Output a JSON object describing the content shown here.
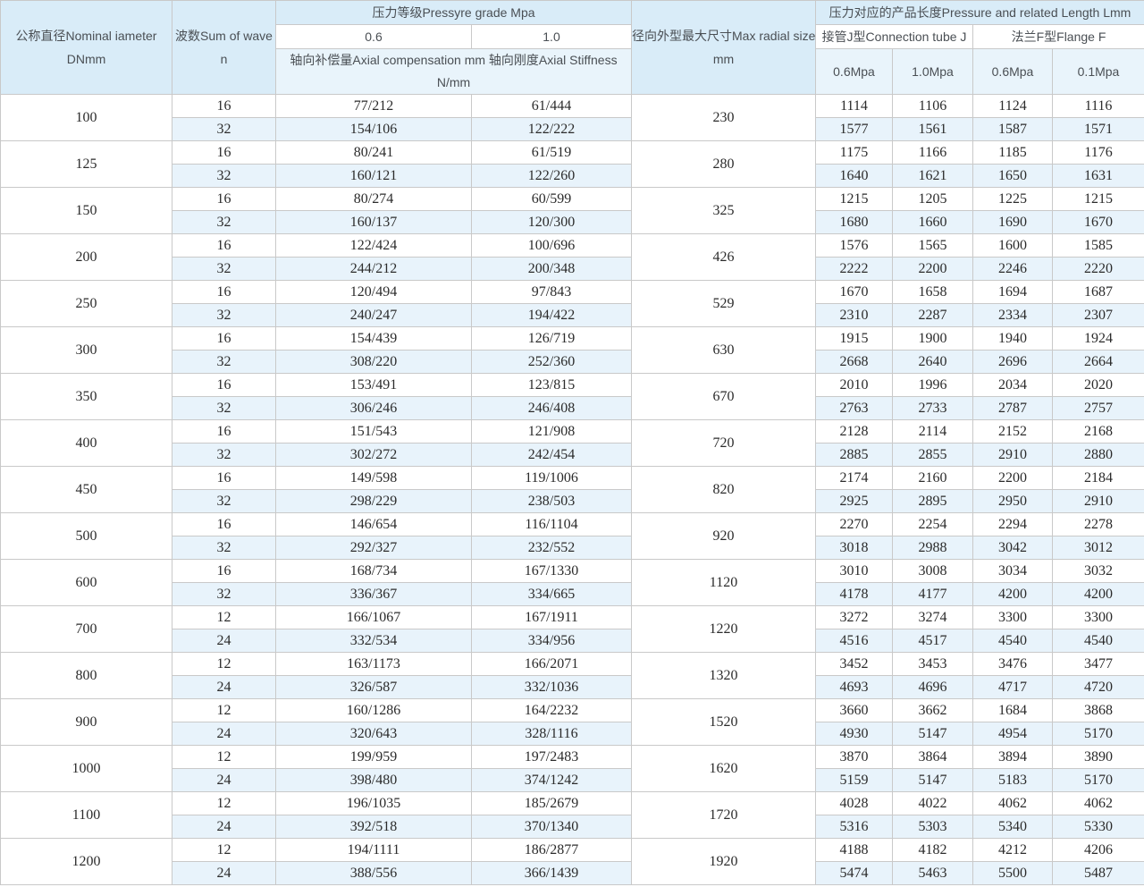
{
  "colors": {
    "header_bg": "#d9ecf8",
    "alt_row_bg": "#e8f3fb",
    "border": "#c9c9c9",
    "header_text": "#4a4f54",
    "body_text": "#2b2b2b"
  },
  "header": {
    "dn_line1": "公称直径Nominal iameter",
    "dn_line2": "DNmm",
    "wave_line1": "波数Sum of wave",
    "wave_line2": "n",
    "pressure_grade": "压力等级Pressyre grade Mpa",
    "grade_06": "0.6",
    "grade_10": "1.0",
    "axial": "轴向补偿量Axial compensation mm 轴向刚度Axial Stiffness N/mm",
    "radial_line1": "径向外型最大尺寸Max radial size",
    "radial_line2": "mm",
    "length_title": "压力对应的产品长度Pressure and related Length Lmm",
    "tube": "接管J型Connection tube J",
    "flange": "法兰F型Flange F",
    "tube_06": "0.6Mpa",
    "tube_10": "1.0Mpa",
    "flange_06": "0.6Mpa",
    "flange_01": "0.1Mpa"
  },
  "body": {
    "groups": [
      {
        "dn": "100",
        "radial": "230",
        "rows": [
          {
            "wave": "16",
            "comp_06": "77/212",
            "comp_10": "61/444",
            "lengths": [
              "1114",
              "1106",
              "1124",
              "1116"
            ]
          },
          {
            "wave": "32",
            "comp_06": "154/106",
            "comp_10": "122/222",
            "lengths": [
              "1577",
              "1561",
              "1587",
              "1571"
            ]
          }
        ]
      },
      {
        "dn": "125",
        "radial": "280",
        "rows": [
          {
            "wave": "16",
            "comp_06": "80/241",
            "comp_10": "61/519",
            "lengths": [
              "1175",
              "1166",
              "1185",
              "1176"
            ]
          },
          {
            "wave": "32",
            "comp_06": "160/121",
            "comp_10": "122/260",
            "lengths": [
              "1640",
              "1621",
              "1650",
              "1631"
            ]
          }
        ]
      },
      {
        "dn": "150",
        "radial": "325",
        "rows": [
          {
            "wave": "16",
            "comp_06": "80/274",
            "comp_10": "60/599",
            "lengths": [
              "1215",
              "1205",
              "1225",
              "1215"
            ]
          },
          {
            "wave": "32",
            "comp_06": "160/137",
            "comp_10": "120/300",
            "lengths": [
              "1680",
              "1660",
              "1690",
              "1670"
            ]
          }
        ]
      },
      {
        "dn": "200",
        "radial": "426",
        "rows": [
          {
            "wave": "16",
            "comp_06": "122/424",
            "comp_10": "100/696",
            "lengths": [
              "1576",
              "1565",
              "1600",
              "1585"
            ]
          },
          {
            "wave": "32",
            "comp_06": "244/212",
            "comp_10": "200/348",
            "lengths": [
              "2222",
              "2200",
              "2246",
              "2220"
            ]
          }
        ]
      },
      {
        "dn": "250",
        "radial": "529",
        "rows": [
          {
            "wave": "16",
            "comp_06": "120/494",
            "comp_10": "97/843",
            "lengths": [
              "1670",
              "1658",
              "1694",
              "1687"
            ]
          },
          {
            "wave": "32",
            "comp_06": "240/247",
            "comp_10": "194/422",
            "lengths": [
              "2310",
              "2287",
              "2334",
              "2307"
            ]
          }
        ]
      },
      {
        "dn": "300",
        "radial": "630",
        "rows": [
          {
            "wave": "16",
            "comp_06": "154/439",
            "comp_10": "126/719",
            "lengths": [
              "1915",
              "1900",
              "1940",
              "1924"
            ]
          },
          {
            "wave": "32",
            "comp_06": "308/220",
            "comp_10": "252/360",
            "lengths": [
              "2668",
              "2640",
              "2696",
              "2664"
            ]
          }
        ]
      },
      {
        "dn": "350",
        "radial": "670",
        "rows": [
          {
            "wave": "16",
            "comp_06": "153/491",
            "comp_10": "123/815",
            "lengths": [
              "2010",
              "1996",
              "2034",
              "2020"
            ]
          },
          {
            "wave": "32",
            "comp_06": "306/246",
            "comp_10": "246/408",
            "lengths": [
              "2763",
              "2733",
              "2787",
              "2757"
            ]
          }
        ]
      },
      {
        "dn": "400",
        "radial": "720",
        "rows": [
          {
            "wave": "16",
            "comp_06": "151/543",
            "comp_10": "121/908",
            "lengths": [
              "2128",
              "2114",
              "2152",
              "2168"
            ]
          },
          {
            "wave": "32",
            "comp_06": "302/272",
            "comp_10": "242/454",
            "lengths": [
              "2885",
              "2855",
              "2910",
              "2880"
            ]
          }
        ]
      },
      {
        "dn": "450",
        "radial": "820",
        "rows": [
          {
            "wave": "16",
            "comp_06": "149/598",
            "comp_10": "119/1006",
            "lengths": [
              "2174",
              "2160",
              "2200",
              "2184"
            ]
          },
          {
            "wave": "32",
            "comp_06": "298/229",
            "comp_10": "238/503",
            "lengths": [
              "2925",
              "2895",
              "2950",
              "2910"
            ]
          }
        ]
      },
      {
        "dn": "500",
        "radial": "920",
        "rows": [
          {
            "wave": "16",
            "comp_06": "146/654",
            "comp_10": "116/1104",
            "lengths": [
              "2270",
              "2254",
              "2294",
              "2278"
            ]
          },
          {
            "wave": "32",
            "comp_06": "292/327",
            "comp_10": "232/552",
            "lengths": [
              "3018",
              "2988",
              "3042",
              "3012"
            ]
          }
        ]
      },
      {
        "dn": "600",
        "radial": "1120",
        "rows": [
          {
            "wave": "16",
            "comp_06": "168/734",
            "comp_10": "167/1330",
            "lengths": [
              "3010",
              "3008",
              "3034",
              "3032"
            ]
          },
          {
            "wave": "32",
            "comp_06": "336/367",
            "comp_10": "334/665",
            "lengths": [
              "4178",
              "4177",
              "4200",
              "4200"
            ]
          }
        ]
      },
      {
        "dn": "700",
        "radial": "1220",
        "rows": [
          {
            "wave": "12",
            "comp_06": "166/1067",
            "comp_10": "167/1911",
            "lengths": [
              "3272",
              "3274",
              "3300",
              "3300"
            ]
          },
          {
            "wave": "24",
            "comp_06": "332/534",
            "comp_10": "334/956",
            "lengths": [
              "4516",
              "4517",
              "4540",
              "4540"
            ]
          }
        ]
      },
      {
        "dn": "800",
        "radial": "1320",
        "rows": [
          {
            "wave": "12",
            "comp_06": "163/1173",
            "comp_10": "166/2071",
            "lengths": [
              "3452",
              "3453",
              "3476",
              "3477"
            ]
          },
          {
            "wave": "24",
            "comp_06": "326/587",
            "comp_10": "332/1036",
            "lengths": [
              "4693",
              "4696",
              "4717",
              "4720"
            ]
          }
        ]
      },
      {
        "dn": "900",
        "radial": "1520",
        "rows": [
          {
            "wave": "12",
            "comp_06": "160/1286",
            "comp_10": "164/2232",
            "lengths": [
              "3660",
              "3662",
              "1684",
              "3868"
            ]
          },
          {
            "wave": "24",
            "comp_06": "320/643",
            "comp_10": "328/1116",
            "lengths": [
              "4930",
              "5147",
              "4954",
              "5170"
            ]
          }
        ]
      },
      {
        "dn": "1000",
        "radial": "1620",
        "rows": [
          {
            "wave": "12",
            "comp_06": "199/959",
            "comp_10": "197/2483",
            "lengths": [
              "3870",
              "3864",
              "3894",
              "3890"
            ]
          },
          {
            "wave": "24",
            "comp_06": "398/480",
            "comp_10": "374/1242",
            "lengths": [
              "5159",
              "5147",
              "5183",
              "5170"
            ]
          }
        ]
      },
      {
        "dn": "1100",
        "radial": "1720",
        "rows": [
          {
            "wave": "12",
            "comp_06": "196/1035",
            "comp_10": "185/2679",
            "lengths": [
              "4028",
              "4022",
              "4062",
              "4062"
            ]
          },
          {
            "wave": "24",
            "comp_06": "392/518",
            "comp_10": "370/1340",
            "lengths": [
              "5316",
              "5303",
              "5340",
              "5330"
            ]
          }
        ]
      },
      {
        "dn": "1200",
        "radial": "1920",
        "rows": [
          {
            "wave": "12",
            "comp_06": "194/1111",
            "comp_10": "186/2877",
            "lengths": [
              "4188",
              "4182",
              "4212",
              "4206"
            ]
          },
          {
            "wave": "24",
            "comp_06": "388/556",
            "comp_10": "366/1439",
            "lengths": [
              "5474",
              "5463",
              "5500",
              "5487"
            ]
          }
        ]
      }
    ]
  }
}
